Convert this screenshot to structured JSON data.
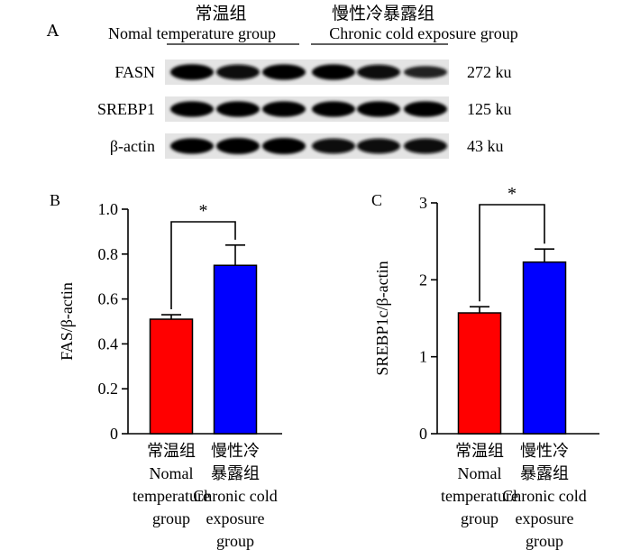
{
  "panel_a": {
    "label": "A",
    "group_left": {
      "cn": "常温组",
      "en": "Nomal temperature group"
    },
    "group_right": {
      "cn": "慢性冷暴露组",
      "en": "Chronic cold exposure group"
    },
    "blots": [
      {
        "name": "FASN",
        "size": "272 ku",
        "intensity": [
          0.95,
          0.85,
          0.9,
          0.9,
          0.8,
          0.45
        ]
      },
      {
        "name": "SREBP1",
        "size": "125 ku",
        "intensity": [
          0.9,
          0.9,
          0.9,
          0.9,
          0.9,
          0.9
        ]
      },
      {
        "name": "β-actin",
        "size": "43 ku",
        "intensity": [
          0.9,
          1.0,
          1.0,
          0.85,
          0.85,
          0.85
        ]
      }
    ]
  },
  "chart_data": [
    {
      "panel": "B",
      "type": "bar",
      "ylabel": "FAS/β-actin",
      "ylim": [
        0,
        1.0
      ],
      "yticks": [
        "0",
        "0.2",
        "0.4",
        "0.6",
        "0.8",
        "1.0"
      ],
      "ytick_values": [
        0,
        0.2,
        0.4,
        0.6,
        0.8,
        1.0
      ],
      "categories": [
        {
          "cn": "常温组",
          "en": [
            "Nomal",
            "temperature",
            "group"
          ]
        },
        {
          "cn": "慢性冷暴露组",
          "cn_lines": [
            "慢性冷",
            "暴露组"
          ],
          "en": [
            "Chronic cold",
            "exposure",
            "group"
          ]
        }
      ],
      "values": [
        0.51,
        0.75
      ],
      "errors": [
        0.02,
        0.09
      ],
      "colors": [
        "#ff0000",
        "#0000ff"
      ],
      "significance": "*"
    },
    {
      "panel": "C",
      "type": "bar",
      "ylabel": "SREBP1c/β-actin",
      "ylim": [
        0,
        3
      ],
      "yticks": [
        "0",
        "1",
        "2",
        "3"
      ],
      "ytick_values": [
        0,
        1,
        2,
        3
      ],
      "categories": [
        {
          "cn": "常温组",
          "en": [
            "Nomal",
            "temperature",
            "group"
          ]
        },
        {
          "cn": "慢性冷暴露组",
          "cn_lines": [
            "慢性冷",
            "暴露组"
          ],
          "en": [
            "Chronic cold",
            "exposure",
            "group"
          ]
        }
      ],
      "values": [
        1.57,
        2.23
      ],
      "errors": [
        0.08,
        0.17
      ],
      "colors": [
        "#ff0000",
        "#0000ff"
      ],
      "significance": "*"
    }
  ]
}
